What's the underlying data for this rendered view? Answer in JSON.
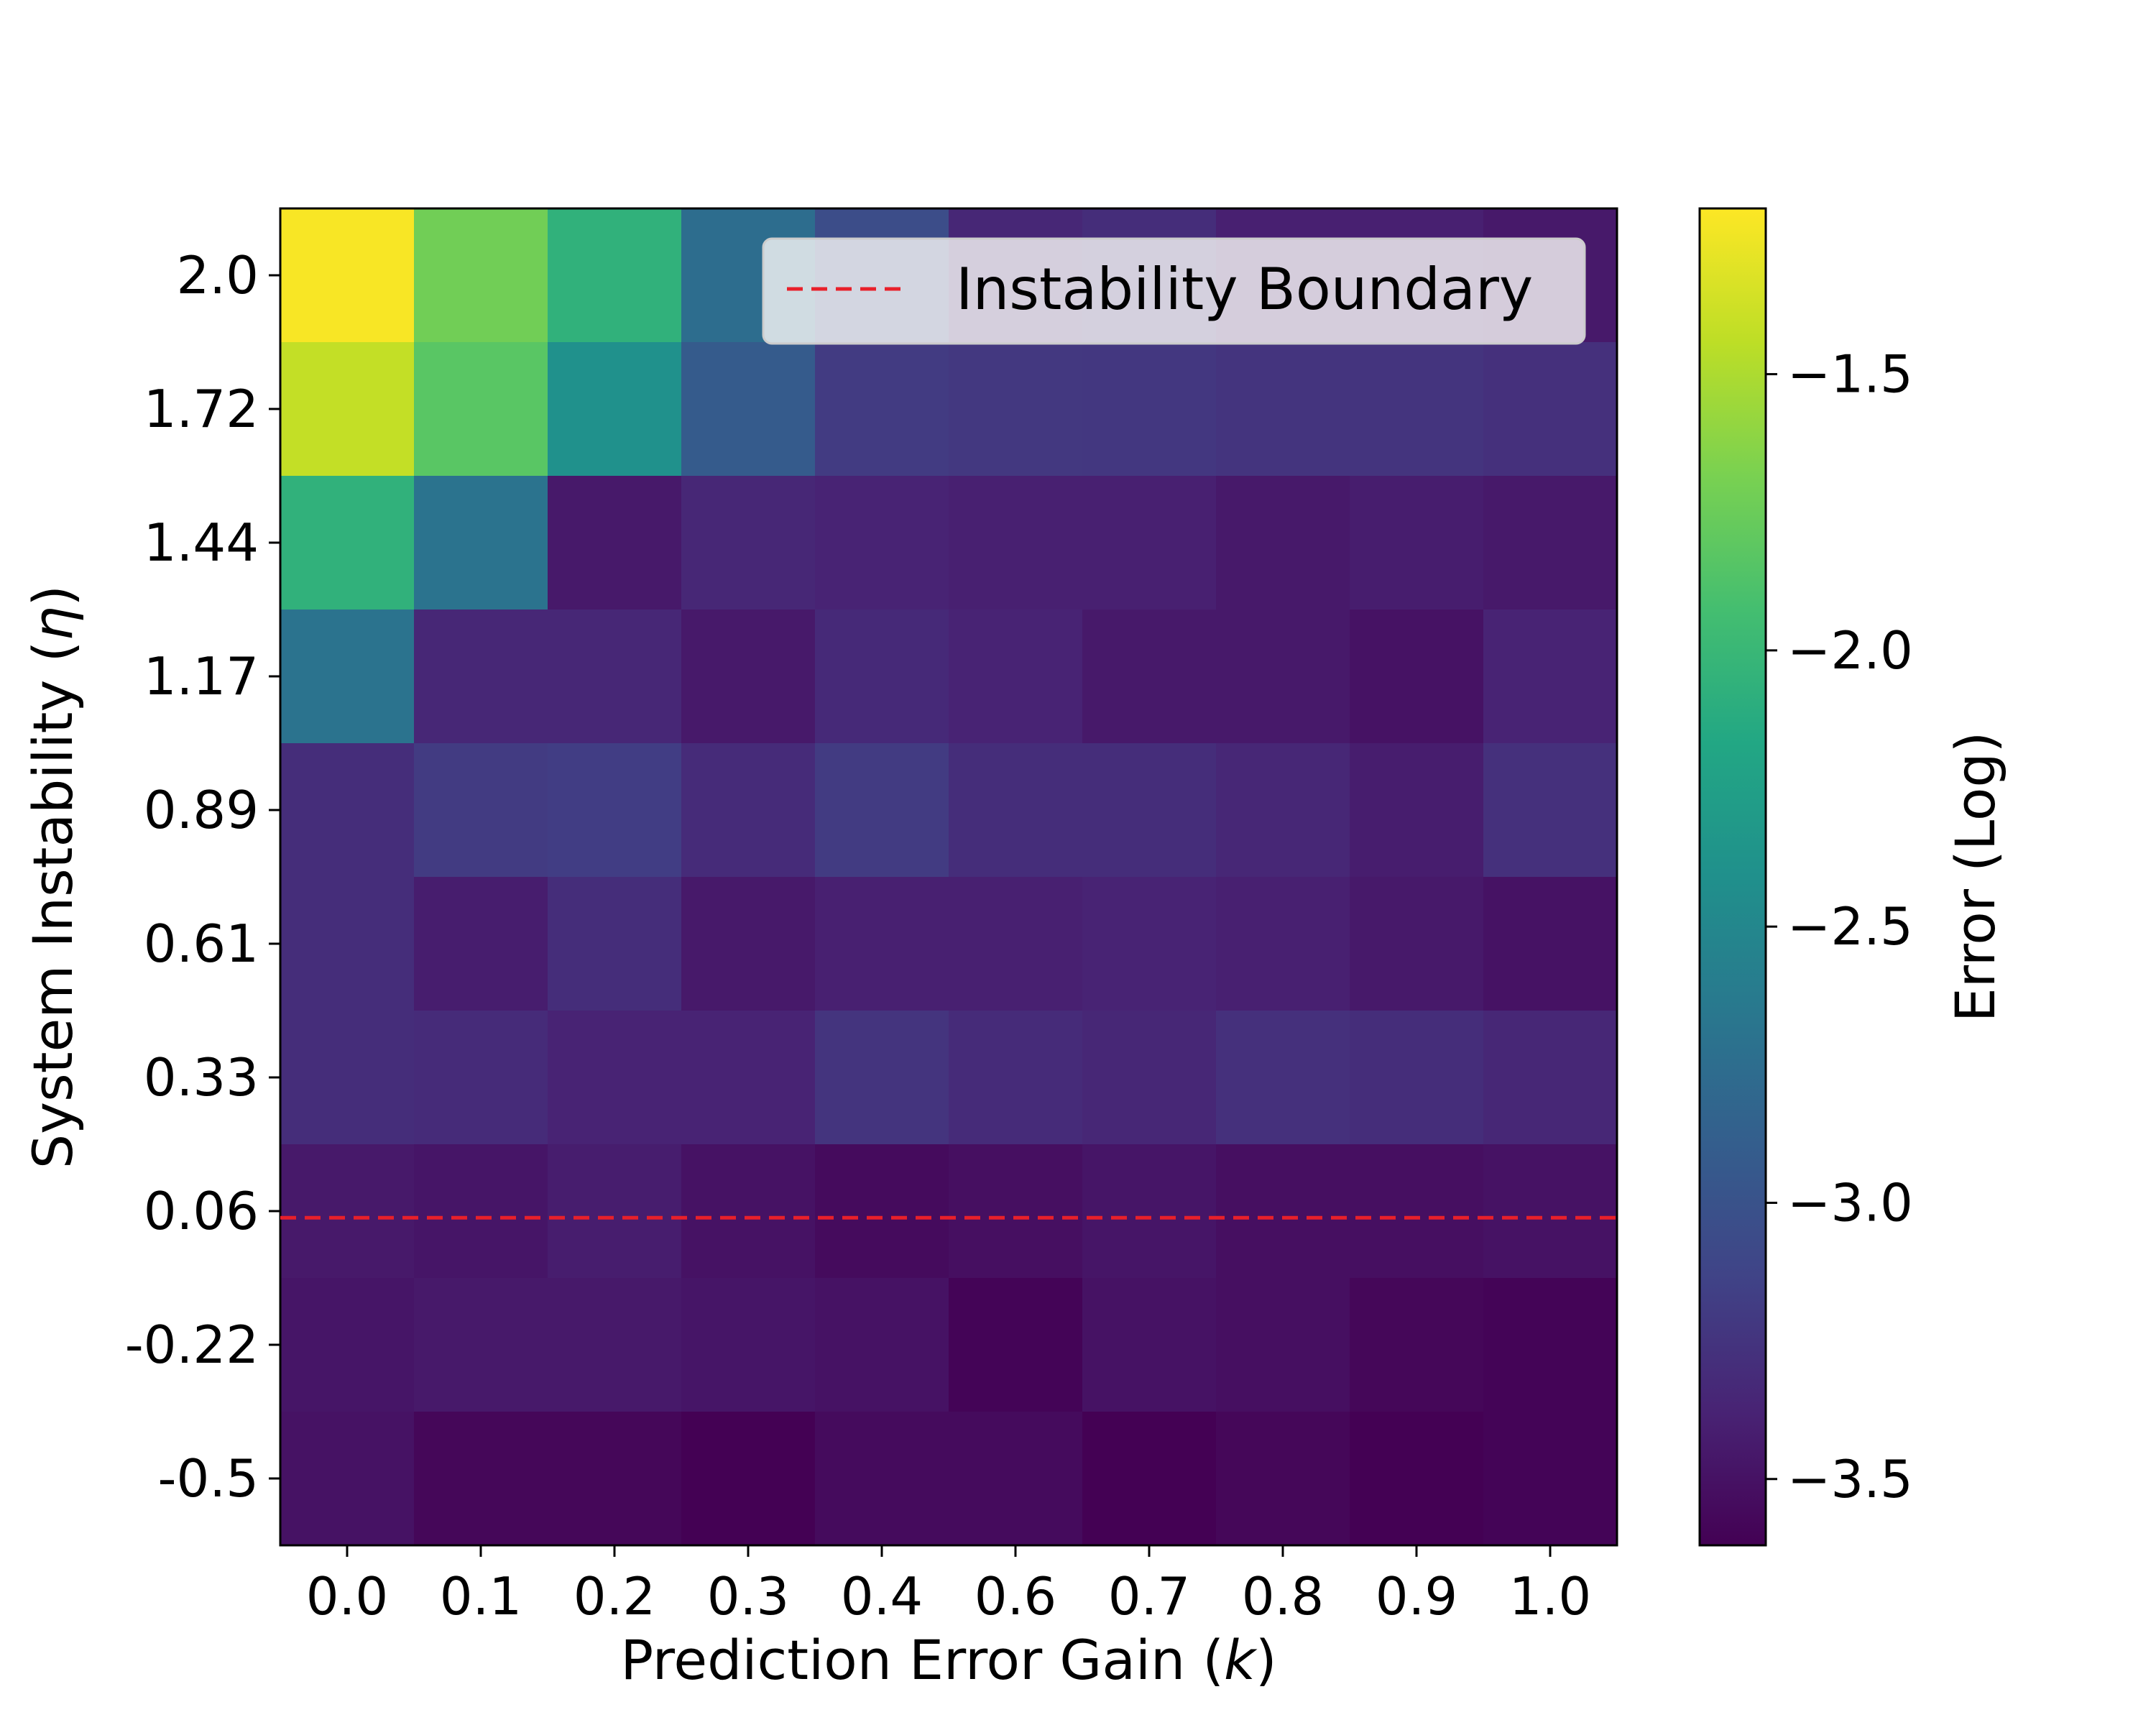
{
  "chart_data": {
    "type": "heatmap",
    "title": "",
    "xlabel": "Prediction Error Gain (k)",
    "ylabel": "System Instability (η)",
    "x_categories": [
      "0.0",
      "0.1",
      "0.2",
      "0.3",
      "0.4",
      "0.6",
      "0.7",
      "0.8",
      "0.9",
      "1.0"
    ],
    "y_categories": [
      "2.0",
      "1.72",
      "1.44",
      "1.17",
      "0.89",
      "0.61",
      "0.33",
      "0.06",
      "-0.22",
      "-0.5"
    ],
    "values": [
      [
        -1.22,
        -1.72,
        -2.06,
        -2.75,
        -3.05,
        -3.35,
        -3.3,
        -3.4,
        -3.4,
        -3.45
      ],
      [
        -1.42,
        -1.83,
        -2.4,
        -2.92,
        -3.2,
        -3.22,
        -3.23,
        -3.25,
        -3.25,
        -3.28
      ],
      [
        -2.06,
        -2.7,
        -3.45,
        -3.35,
        -3.38,
        -3.4,
        -3.4,
        -3.45,
        -3.42,
        -3.45
      ],
      [
        -2.7,
        -3.35,
        -3.35,
        -3.45,
        -3.33,
        -3.38,
        -3.45,
        -3.45,
        -3.5,
        -3.38
      ],
      [
        -3.3,
        -3.2,
        -3.18,
        -3.32,
        -3.2,
        -3.3,
        -3.3,
        -3.35,
        -3.42,
        -3.28
      ],
      [
        -3.3,
        -3.42,
        -3.3,
        -3.45,
        -3.4,
        -3.4,
        -3.38,
        -3.4,
        -3.45,
        -3.5
      ],
      [
        -3.3,
        -3.32,
        -3.38,
        -3.38,
        -3.25,
        -3.32,
        -3.35,
        -3.28,
        -3.3,
        -3.35
      ],
      [
        -3.45,
        -3.48,
        -3.42,
        -3.5,
        -3.55,
        -3.52,
        -3.48,
        -3.52,
        -3.52,
        -3.5
      ],
      [
        -3.48,
        -3.45,
        -3.45,
        -3.48,
        -3.5,
        -3.6,
        -3.5,
        -3.52,
        -3.58,
        -3.6
      ],
      [
        -3.5,
        -3.58,
        -3.58,
        -3.62,
        -3.55,
        -3.55,
        -3.62,
        -3.58,
        -3.62,
        -3.6
      ]
    ],
    "colormap": "viridis",
    "vmin": -3.62,
    "vmax": -1.2,
    "colorbar": {
      "label": "Error (Log)",
      "ticks": [
        -1.5,
        -2.0,
        -2.5,
        -3.0,
        -3.5
      ],
      "tick_labels": [
        "−1.5",
        "−2.0",
        "−2.5",
        "−3.0",
        "−3.5"
      ]
    },
    "boundary": {
      "y_value": 0.06,
      "y_offset_rows": 0.55,
      "color": "#e8202a",
      "style": "dashed"
    },
    "legend": {
      "entries": [
        "Instability Boundary"
      ],
      "placement": "upper right"
    }
  }
}
